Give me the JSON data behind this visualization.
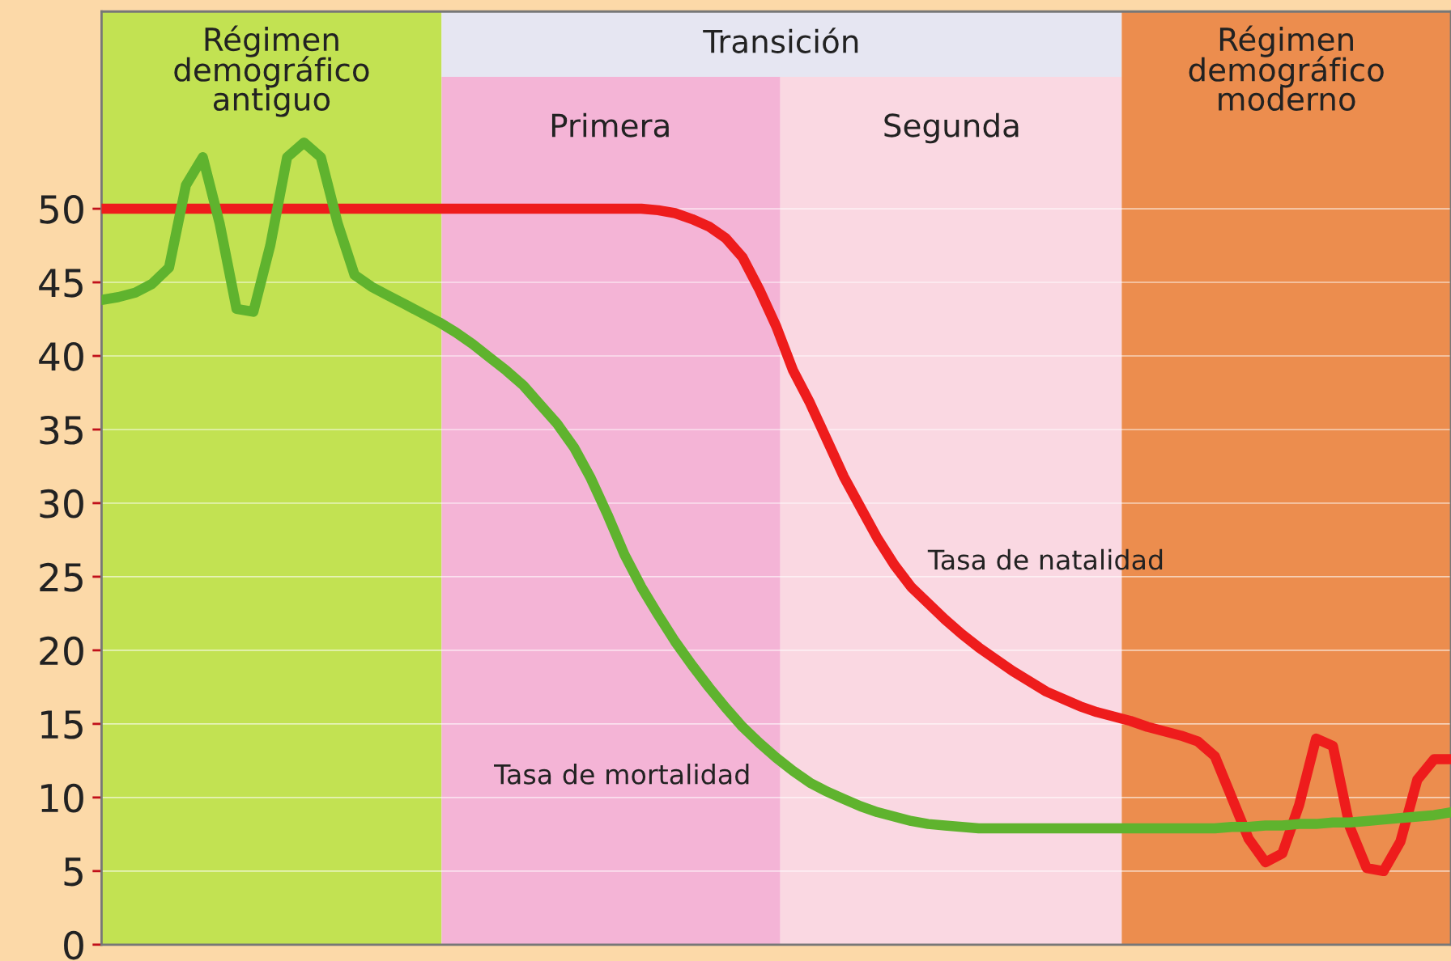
{
  "chart_data": {
    "type": "line",
    "categories": [
      null,
      null,
      null,
      null,
      null,
      null,
      null,
      null,
      null,
      null,
      null,
      null,
      null,
      null,
      null,
      null,
      null,
      null,
      null,
      null,
      null,
      null,
      null,
      null,
      null,
      null,
      null,
      null,
      null,
      null,
      null,
      null,
      null,
      null,
      null,
      null,
      null,
      null,
      null,
      null,
      null,
      null,
      null,
      null,
      null,
      null,
      null,
      null,
      null,
      null,
      null,
      null,
      null,
      null,
      null,
      null,
      null,
      null,
      null,
      null,
      null,
      null,
      null,
      null,
      null,
      null,
      null,
      null,
      null,
      null,
      null,
      null,
      null,
      null,
      null,
      null,
      null,
      null,
      null,
      null,
      null
    ],
    "ylim": [
      0,
      63.4
    ],
    "yticks": [
      0,
      5,
      10,
      15,
      20,
      25,
      30,
      35,
      40,
      45,
      50
    ],
    "tick_labels": "y",
    "grid": "y",
    "series": [
      {
        "color": "#ee1c1c",
        "values": [
          50,
          50,
          50,
          50,
          50,
          50,
          50,
          50,
          50,
          50,
          50,
          50,
          50,
          50,
          50,
          50,
          50,
          50,
          50,
          50,
          50,
          50,
          50,
          50,
          50,
          50,
          50,
          50,
          50,
          50,
          50,
          50,
          50,
          49.9,
          49.7,
          49.3,
          48.8,
          48,
          46.7,
          44.5,
          42,
          39,
          36.8,
          34.3,
          31.8,
          29.7,
          27.6,
          25.8,
          24.3,
          23.2,
          22.1,
          21.1,
          20.2,
          19.4,
          18.6,
          17.9,
          17.2,
          16.7,
          16.2,
          15.8,
          15.5,
          15.2,
          14.8,
          14.5,
          14.2,
          13.8,
          12.8,
          10,
          7.2,
          5.6,
          6.2,
          9.5,
          14,
          13.5,
          8,
          5.2,
          5,
          7,
          11.2,
          12.6,
          12.6
        ]
      },
      {
        "color": "#5fb32e",
        "values": [
          43.8,
          44,
          44.3,
          44.9,
          46,
          51.6,
          53.5,
          49,
          43.2,
          43,
          47.5,
          53.5,
          54.5,
          53.5,
          49,
          45.5,
          44.7,
          44.1,
          43.5,
          42.9,
          42.3,
          41.6,
          40.8,
          39.9,
          39,
          38,
          36.7,
          35.4,
          33.8,
          31.7,
          29.2,
          26.5,
          24.3,
          22.4,
          20.6,
          19,
          17.5,
          16.1,
          14.8,
          13.7,
          12.7,
          11.8,
          11,
          10.4,
          9.9,
          9.4,
          9,
          8.7,
          8.4,
          8.2,
          8.1,
          8,
          7.9,
          7.9,
          7.9,
          7.9,
          7.9,
          7.9,
          7.9,
          7.9,
          7.9,
          7.9,
          7.9,
          7.9,
          7.9,
          7.9,
          7.9,
          8,
          8,
          8.1,
          8.1,
          8.2,
          8.2,
          8.3,
          8.3,
          8.4,
          8.5,
          8.6,
          8.7,
          8.8,
          9
        ]
      }
    ],
    "annotations": [
      "Régimen\ndemográfico\nantiguo",
      "Transición",
      "Primera",
      "Segunda",
      "Régimen\ndemográfico\nmoderno",
      "Tasa de natalidad",
      "Tasa de mortalidad"
    ]
  }
}
